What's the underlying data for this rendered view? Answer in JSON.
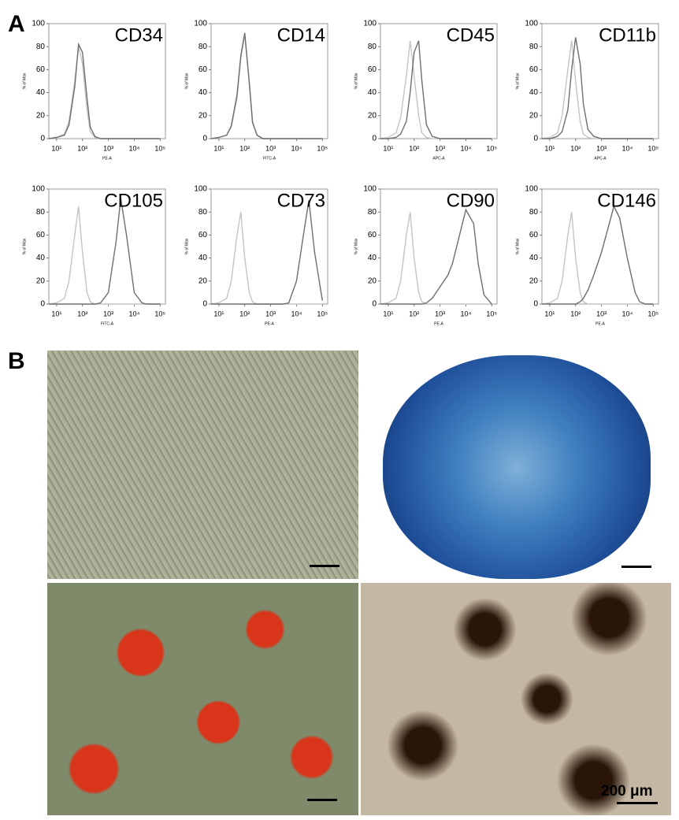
{
  "panel_labels": [
    "A",
    "B"
  ],
  "chart_data": [
    {
      "type": "line",
      "title": "CD34",
      "xlabel": "PE-A",
      "ylabel": "% of Max",
      "xscale": "log",
      "x": [
        5,
        10,
        20,
        30,
        50,
        70,
        100,
        150,
        200,
        300,
        500,
        1000,
        2000,
        3000,
        5000,
        10000,
        20000,
        30000,
        50000,
        100000
      ],
      "xlim": [
        5,
        160000
      ],
      "ylim": [
        0,
        100
      ],
      "xticks": [
        {
          "value": 10,
          "label": "10¹"
        },
        {
          "value": 100,
          "label": "10²"
        },
        {
          "value": 1000,
          "label": "10³"
        },
        {
          "value": 10000,
          "label": "10⁴"
        },
        {
          "value": 100000,
          "label": "10⁵"
        }
      ],
      "yticks": [
        0,
        20,
        40,
        60,
        80,
        100
      ],
      "series": [
        {
          "color": "#c4c4c4",
          "values": [
            0,
            1,
            4,
            15,
            50,
            80,
            65,
            25,
            6,
            1,
            0,
            0,
            0,
            0,
            0,
            0,
            0,
            0,
            0,
            0
          ]
        },
        {
          "color": "#6e6e6e",
          "values": [
            0,
            1,
            3,
            12,
            45,
            82,
            75,
            35,
            10,
            2,
            0,
            0,
            0,
            0,
            0,
            0,
            0,
            0,
            0,
            0
          ]
        }
      ]
    },
    {
      "type": "line",
      "title": "CD14",
      "xlabel": "FITC-A",
      "ylabel": "% of Max",
      "xscale": "log",
      "x": [
        5,
        10,
        20,
        30,
        50,
        70,
        100,
        150,
        200,
        300,
        500,
        1000,
        2000,
        3000,
        5000,
        10000,
        20000,
        30000,
        50000,
        100000
      ],
      "xlim": [
        5,
        160000
      ],
      "ylim": [
        0,
        100
      ],
      "xticks": [
        {
          "value": 10,
          "label": "10¹"
        },
        {
          "value": 100,
          "label": "10²"
        },
        {
          "value": 1000,
          "label": "10³"
        },
        {
          "value": 10000,
          "label": "10⁴"
        },
        {
          "value": 100000,
          "label": "10⁵"
        }
      ],
      "yticks": [
        0,
        20,
        40,
        60,
        80,
        100
      ],
      "series": [
        {
          "color": "#c4c4c4",
          "values": [
            0,
            1,
            3,
            10,
            35,
            70,
            90,
            50,
            15,
            3,
            0,
            0,
            0,
            0,
            0,
            0,
            0,
            0,
            0,
            0
          ]
        },
        {
          "color": "#6e6e6e",
          "values": [
            0,
            1,
            3,
            11,
            38,
            72,
            92,
            48,
            14,
            3,
            0,
            0,
            0,
            0,
            0,
            0,
            0,
            0,
            0,
            0
          ]
        }
      ]
    },
    {
      "type": "line",
      "title": "CD45",
      "xlabel": "APC-A",
      "ylabel": "% of Max",
      "xscale": "log",
      "x": [
        5,
        10,
        20,
        30,
        50,
        70,
        100,
        150,
        200,
        300,
        500,
        1000,
        2000,
        3000,
        5000,
        10000,
        20000,
        30000,
        50000,
        100000
      ],
      "xlim": [
        5,
        160000
      ],
      "ylim": [
        0,
        100
      ],
      "xticks": [
        {
          "value": 10,
          "label": "10¹"
        },
        {
          "value": 100,
          "label": "10²"
        },
        {
          "value": 1000,
          "label": "10³"
        },
        {
          "value": 10000,
          "label": "10⁴"
        },
        {
          "value": 100000,
          "label": "10⁵"
        }
      ],
      "yticks": [
        0,
        20,
        40,
        60,
        80,
        100
      ],
      "series": [
        {
          "color": "#c4c4c4",
          "values": [
            0,
            1,
            5,
            18,
            55,
            85,
            55,
            20,
            5,
            1,
            0,
            0,
            0,
            0,
            0,
            0,
            0,
            0,
            0,
            0
          ]
        },
        {
          "color": "#6e6e6e",
          "values": [
            0,
            0,
            1,
            4,
            15,
            40,
            75,
            85,
            50,
            12,
            2,
            0,
            0,
            0,
            0,
            0,
            0,
            0,
            0,
            0
          ]
        }
      ]
    },
    {
      "type": "line",
      "title": "CD11b",
      "xlabel": "APC-A",
      "ylabel": "% of Max",
      "xscale": "log",
      "x": [
        5,
        10,
        20,
        30,
        50,
        70,
        100,
        150,
        200,
        300,
        500,
        1000,
        2000,
        3000,
        5000,
        10000,
        20000,
        30000,
        50000,
        100000
      ],
      "xlim": [
        5,
        160000
      ],
      "ylim": [
        0,
        100
      ],
      "xticks": [
        {
          "value": 10,
          "label": "10¹"
        },
        {
          "value": 100,
          "label": "10²"
        },
        {
          "value": 1000,
          "label": "10³"
        },
        {
          "value": 10000,
          "label": "10⁴"
        },
        {
          "value": 100000,
          "label": "10⁵"
        }
      ],
      "yticks": [
        0,
        20,
        40,
        60,
        80,
        100
      ],
      "series": [
        {
          "color": "#c4c4c4",
          "values": [
            0,
            1,
            5,
            20,
            60,
            85,
            50,
            15,
            4,
            1,
            0,
            0,
            0,
            0,
            0,
            0,
            0,
            0,
            0,
            0
          ]
        },
        {
          "color": "#6e6e6e",
          "values": [
            0,
            0,
            2,
            6,
            25,
            60,
            88,
            65,
            30,
            8,
            2,
            0,
            0,
            0,
            0,
            0,
            0,
            0,
            0,
            0
          ]
        }
      ]
    },
    {
      "type": "line",
      "title": "CD105",
      "xlabel": "FITC-A",
      "ylabel": "% of Max",
      "xscale": "log",
      "x": [
        5,
        10,
        20,
        30,
        50,
        70,
        100,
        150,
        200,
        300,
        500,
        1000,
        2000,
        3000,
        5000,
        10000,
        20000,
        30000,
        50000,
        100000
      ],
      "xlim": [
        5,
        160000
      ],
      "ylim": [
        0,
        100
      ],
      "xticks": [
        {
          "value": 10,
          "label": "10¹"
        },
        {
          "value": 100,
          "label": "10²"
        },
        {
          "value": 1000,
          "label": "10³"
        },
        {
          "value": 10000,
          "label": "10⁴"
        },
        {
          "value": 100000,
          "label": "10⁵"
        }
      ],
      "yticks": [
        0,
        20,
        40,
        60,
        80,
        100
      ],
      "series": [
        {
          "color": "#c4c4c4",
          "values": [
            0,
            1,
            5,
            20,
            60,
            85,
            45,
            10,
            2,
            0,
            0,
            0,
            0,
            0,
            0,
            0,
            0,
            0,
            0,
            0
          ]
        },
        {
          "color": "#6e6e6e",
          "values": [
            0,
            0,
            0,
            0,
            0,
            0,
            0,
            0,
            0,
            0,
            1,
            10,
            55,
            92,
            60,
            10,
            1,
            0,
            0,
            0
          ]
        }
      ]
    },
    {
      "type": "line",
      "title": "CD73",
      "xlabel": "PE-A",
      "ylabel": "% of Max",
      "xscale": "log",
      "x": [
        5,
        10,
        20,
        30,
        50,
        70,
        100,
        150,
        200,
        300,
        500,
        1000,
        2000,
        3000,
        5000,
        10000,
        20000,
        30000,
        50000,
        100000
      ],
      "xlim": [
        5,
        160000
      ],
      "ylim": [
        0,
        100
      ],
      "xticks": [
        {
          "value": 10,
          "label": "10¹"
        },
        {
          "value": 100,
          "label": "10²"
        },
        {
          "value": 1000,
          "label": "10³"
        },
        {
          "value": 10000,
          "label": "10⁴"
        },
        {
          "value": 100000,
          "label": "10⁵"
        }
      ],
      "yticks": [
        0,
        20,
        40,
        60,
        80,
        100
      ],
      "series": [
        {
          "color": "#c4c4c4",
          "values": [
            0,
            1,
            5,
            20,
            60,
            80,
            40,
            10,
            2,
            0,
            0,
            0,
            0,
            0,
            0,
            0,
            0,
            0,
            0,
            0
          ]
        },
        {
          "color": "#6e6e6e",
          "values": [
            0,
            0,
            0,
            0,
            0,
            0,
            0,
            0,
            0,
            0,
            0,
            0,
            0,
            0,
            1,
            20,
            65,
            90,
            45,
            3
          ]
        }
      ]
    },
    {
      "type": "line",
      "title": "CD90",
      "xlabel": "PE-A",
      "ylabel": "% of Max",
      "xscale": "log",
      "x": [
        5,
        10,
        20,
        30,
        50,
        70,
        100,
        150,
        200,
        300,
        500,
        1000,
        2000,
        3000,
        5000,
        10000,
        20000,
        30000,
        50000,
        100000
      ],
      "xlim": [
        5,
        160000
      ],
      "ylim": [
        0,
        100
      ],
      "xticks": [
        {
          "value": 10,
          "label": "10¹"
        },
        {
          "value": 100,
          "label": "10²"
        },
        {
          "value": 1000,
          "label": "10³"
        },
        {
          "value": 10000,
          "label": "10⁴"
        },
        {
          "value": 100000,
          "label": "10⁵"
        }
      ],
      "yticks": [
        0,
        20,
        40,
        60,
        80,
        100
      ],
      "series": [
        {
          "color": "#c4c4c4",
          "values": [
            0,
            1,
            5,
            20,
            60,
            80,
            40,
            10,
            2,
            0,
            0,
            0,
            0,
            0,
            0,
            0,
            0,
            0,
            0,
            0
          ]
        },
        {
          "color": "#6e6e6e",
          "values": [
            0,
            0,
            0,
            0,
            0,
            0,
            0,
            0,
            0,
            1,
            5,
            15,
            25,
            35,
            55,
            82,
            70,
            35,
            8,
            0
          ]
        }
      ]
    },
    {
      "type": "line",
      "title": "CD146",
      "xlabel": "PE-A",
      "ylabel": "% of Max",
      "xscale": "log",
      "x": [
        5,
        10,
        20,
        30,
        50,
        70,
        100,
        150,
        200,
        300,
        500,
        1000,
        2000,
        3000,
        5000,
        10000,
        20000,
        30000,
        50000,
        100000
      ],
      "xlim": [
        5,
        160000
      ],
      "ylim": [
        0,
        100
      ],
      "xticks": [
        {
          "value": 10,
          "label": "10¹"
        },
        {
          "value": 100,
          "label": "10²"
        },
        {
          "value": 1000,
          "label": "10³"
        },
        {
          "value": 10000,
          "label": "10⁴"
        },
        {
          "value": 100000,
          "label": "10⁵"
        }
      ],
      "yticks": [
        0,
        20,
        40,
        60,
        80,
        100
      ],
      "series": [
        {
          "color": "#c4c4c4",
          "values": [
            0,
            1,
            5,
            20,
            60,
            80,
            40,
            10,
            2,
            0,
            0,
            0,
            0,
            0,
            0,
            0,
            0,
            0,
            0,
            0
          ]
        },
        {
          "color": "#6e6e6e",
          "values": [
            0,
            0,
            0,
            0,
            0,
            0,
            0,
            2,
            5,
            12,
            25,
            45,
            70,
            85,
            75,
            40,
            10,
            2,
            0,
            0
          ]
        }
      ]
    }
  ],
  "images": {
    "scale_bar": "200 μm"
  }
}
